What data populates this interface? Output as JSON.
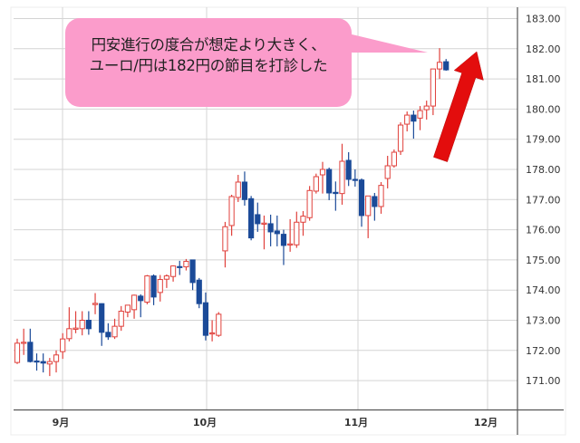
{
  "chart_data": {
    "type": "candlestick",
    "title": "",
    "xlabel": "",
    "ylabel": "",
    "ylim": [
      170.1,
      183.5
    ],
    "y_ticks": [
      "183.00",
      "182.00",
      "181.00",
      "180.00",
      "179.00",
      "178.00",
      "177.00",
      "176.00",
      "175.00",
      "174.00",
      "173.00",
      "172.00",
      "171.00"
    ],
    "x_ticks": [
      "9月",
      "10月",
      "11月",
      "12月"
    ],
    "grid": true,
    "colors": {
      "up": "#e0413c",
      "down": "#1b4a98",
      "grid": "#d4d4d4",
      "callout": "#fb9ccb",
      "arrow": "#e30d0d"
    },
    "ohlc": [
      [
        171.6,
        172.39,
        171.55,
        172.24
      ],
      [
        172.25,
        172.72,
        171.85,
        172.27
      ],
      [
        172.27,
        172.72,
        171.6,
        171.63
      ],
      [
        171.65,
        171.9,
        171.33,
        171.62
      ],
      [
        171.63,
        171.9,
        171.27,
        171.58
      ],
      [
        171.55,
        171.75,
        171.15,
        171.63
      ],
      [
        171.63,
        172.0,
        171.27,
        171.85
      ],
      [
        171.96,
        172.57,
        171.72,
        172.38
      ],
      [
        172.39,
        173.43,
        172.3,
        172.72
      ],
      [
        172.7,
        173.3,
        172.57,
        172.74
      ],
      [
        172.72,
        173.3,
        172.5,
        173.0
      ],
      [
        173.0,
        173.3,
        172.52,
        172.72
      ],
      [
        173.52,
        173.9,
        173.2,
        173.56
      ],
      [
        173.55,
        173.56,
        172.15,
        172.6
      ],
      [
        172.6,
        172.9,
        172.35,
        172.45
      ],
      [
        172.45,
        173.05,
        172.38,
        172.8
      ],
      [
        172.8,
        173.47,
        172.65,
        173.3
      ],
      [
        173.27,
        173.47,
        173.1,
        173.5
      ],
      [
        173.35,
        173.85,
        173.05,
        173.83
      ],
      [
        173.8,
        173.86,
        173.1,
        173.65
      ],
      [
        173.6,
        174.5,
        173.53,
        174.47
      ],
      [
        174.47,
        174.52,
        173.5,
        173.77
      ],
      [
        173.92,
        174.5,
        173.62,
        174.35
      ],
      [
        174.36,
        174.52,
        174.07,
        174.47
      ],
      [
        174.45,
        174.82,
        174.28,
        174.8
      ],
      [
        174.78,
        174.97,
        174.5,
        174.76
      ],
      [
        174.77,
        175.03,
        174.65,
        174.95
      ],
      [
        175.0,
        175.0,
        174.0,
        174.25
      ],
      [
        174.33,
        174.4,
        173.4,
        173.55
      ],
      [
        173.58,
        173.92,
        172.33,
        172.5
      ],
      [
        172.55,
        173.0,
        172.3,
        172.58
      ],
      [
        172.5,
        173.27,
        172.45,
        173.2
      ],
      [
        175.3,
        176.26,
        174.75,
        176.1
      ],
      [
        176.14,
        177.16,
        175.8,
        177.1
      ],
      [
        177.07,
        177.82,
        176.92,
        177.58
      ],
      [
        177.58,
        177.93,
        176.8,
        177.0
      ],
      [
        177.03,
        177.12,
        175.65,
        175.73
      ],
      [
        176.5,
        176.9,
        175.93,
        176.2
      ],
      [
        176.2,
        176.47,
        175.35,
        176.22
      ],
      [
        176.2,
        176.5,
        175.45,
        175.93
      ],
      [
        175.96,
        176.47,
        175.45,
        175.87
      ],
      [
        175.85,
        176.0,
        174.83,
        175.48
      ],
      [
        175.5,
        176.35,
        175.27,
        175.53
      ],
      [
        175.5,
        176.6,
        175.4,
        176.25
      ],
      [
        176.25,
        176.62,
        175.8,
        176.45
      ],
      [
        176.4,
        177.45,
        176.3,
        177.3
      ],
      [
        177.28,
        177.86,
        177.2,
        177.76
      ],
      [
        177.82,
        178.25,
        177.2,
        178.0
      ],
      [
        178.0,
        178.06,
        176.98,
        177.22
      ],
      [
        177.24,
        177.6,
        176.63,
        177.2
      ],
      [
        177.2,
        178.85,
        176.83,
        178.27
      ],
      [
        178.3,
        178.57,
        177.45,
        177.67
      ],
      [
        177.67,
        178.0,
        177.43,
        177.64
      ],
      [
        177.65,
        177.7,
        176.1,
        176.47
      ],
      [
        176.47,
        177.12,
        175.72,
        177.12
      ],
      [
        177.1,
        177.22,
        176.3,
        176.77
      ],
      [
        176.77,
        177.58,
        176.53,
        177.47
      ],
      [
        177.7,
        178.45,
        177.37,
        178.12
      ],
      [
        178.12,
        178.66,
        178.06,
        178.57
      ],
      [
        178.6,
        179.56,
        178.48,
        179.47
      ],
      [
        179.5,
        179.92,
        179.26,
        179.8
      ],
      [
        179.8,
        179.95,
        179.02,
        179.6
      ],
      [
        179.7,
        180.1,
        179.3,
        179.95
      ],
      [
        179.98,
        180.28,
        179.65,
        180.1
      ],
      [
        180.1,
        181.33,
        179.8,
        181.33
      ],
      [
        181.33,
        182.02,
        181.0,
        181.55
      ],
      [
        181.57,
        181.66,
        181.27,
        181.3
      ]
    ],
    "ohlc_fields": [
      "open",
      "high",
      "low",
      "close"
    ],
    "annotation": {
      "callout_lines": [
        "円安進行の度合が想定より大きく、",
        "ユーロ/円は182円の節目を打診した"
      ],
      "arrow_direction": "up"
    }
  }
}
